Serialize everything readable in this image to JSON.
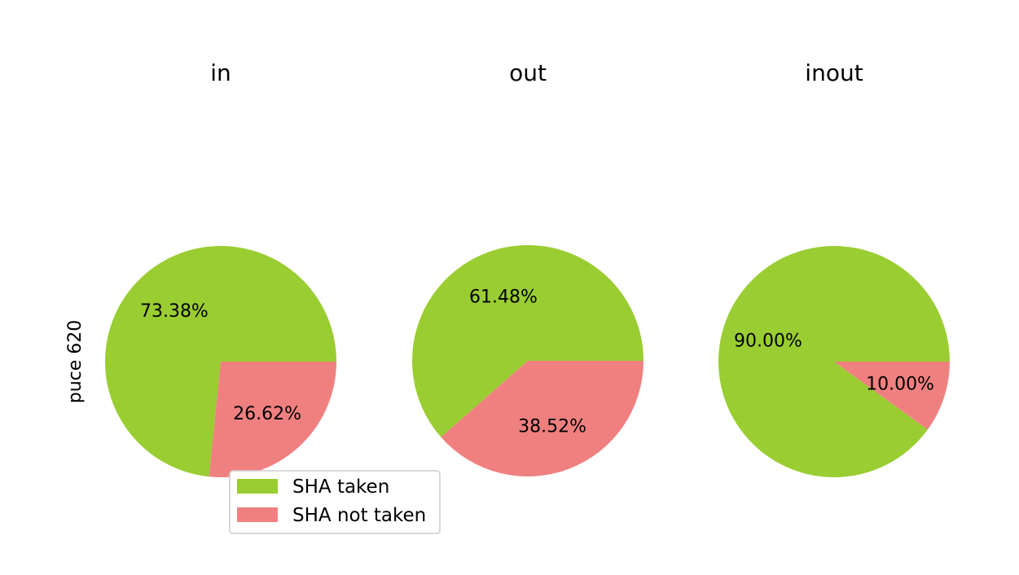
{
  "chart_data": {
    "type": "pie",
    "ylabel": "puce 620",
    "colors": {
      "SHA taken": "#9acd32",
      "SHA not taken": "#f08080"
    },
    "legend": {
      "placement": "lower-center",
      "entries": [
        "SHA taken",
        "SHA not taken"
      ]
    },
    "pies": [
      {
        "title": "in",
        "slices": [
          {
            "label": "SHA taken",
            "value": 73.38,
            "text": "73.38%"
          },
          {
            "label": "SHA not taken",
            "value": 26.62,
            "text": "26.62%"
          }
        ]
      },
      {
        "title": "out",
        "slices": [
          {
            "label": "SHA taken",
            "value": 61.48,
            "text": "61.48%"
          },
          {
            "label": "SHA not taken",
            "value": 38.52,
            "text": "38.52%"
          }
        ]
      },
      {
        "title": "inout",
        "slices": [
          {
            "label": "SHA taken",
            "value": 90.0,
            "text": "90.00%"
          },
          {
            "label": "SHA not taken",
            "value": 10.0,
            "text": "10.00%"
          }
        ]
      }
    ]
  }
}
